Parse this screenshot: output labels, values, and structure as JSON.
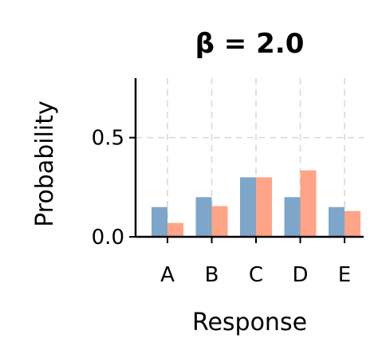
{
  "chart_data": {
    "type": "bar",
    "title": "β = 2.0",
    "xlabel": "Response",
    "ylabel": "Probability",
    "categories": [
      "A",
      "B",
      "C",
      "D",
      "E"
    ],
    "series": [
      {
        "values": [
          0.15,
          0.2,
          0.3,
          0.2,
          0.15
        ],
        "color": "#7ea6ca"
      },
      {
        "values": [
          0.07,
          0.155,
          0.3,
          0.335,
          0.13
        ],
        "color": "#ffa486"
      }
    ],
    "ylim": [
      0,
      0.8
    ],
    "yticks": [
      0.0,
      0.5
    ],
    "ytick_labels": [
      "0.0",
      "0.5"
    ],
    "grid": true,
    "grid_style": "dashed"
  }
}
